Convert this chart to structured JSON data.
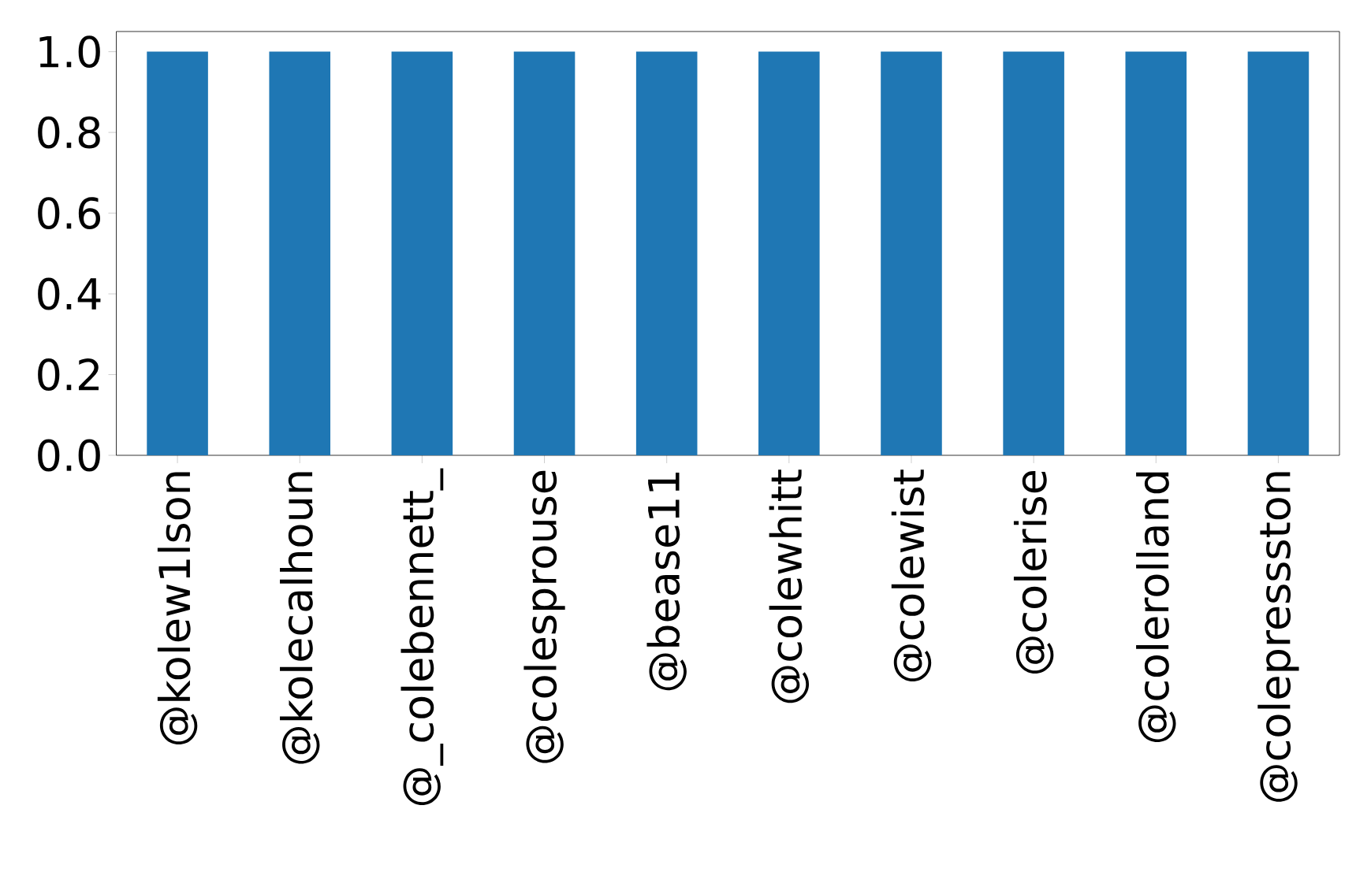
{
  "chart_data": {
    "type": "bar",
    "categories": [
      "@kolew1lson",
      "@kolecalhoun",
      "@_colebennett_",
      "@colesprouse",
      "@bease11",
      "@colewhitt",
      "@colewist",
      "@colerise",
      "@colerolland",
      "@colepressston"
    ],
    "values": [
      1,
      1,
      1,
      1,
      1,
      1,
      1,
      1,
      1,
      1
    ],
    "color": "#1f77b4",
    "ylim": [
      0,
      1.05
    ],
    "yticks": [
      {
        "value": 0,
        "label": "0.0"
      },
      {
        "value": 0.2,
        "label": "0.2"
      },
      {
        "value": 0.4,
        "label": "0.4"
      },
      {
        "value": 0.6,
        "label": "0.6"
      },
      {
        "value": 0.8,
        "label": "0.8"
      },
      {
        "value": 1,
        "label": "1.0"
      }
    ]
  }
}
